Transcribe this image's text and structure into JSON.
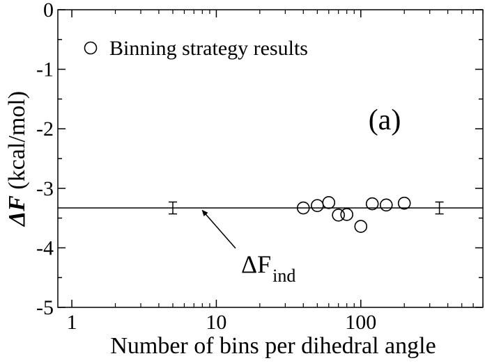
{
  "chart_data": {
    "type": "scatter",
    "xlabel": "Number of bins per dihedral angle",
    "ylabel_symbol": "ΔF",
    "ylabel_unit": " (kcal/mol)",
    "xscale": "log",
    "xlim": [
      0.8,
      700
    ],
    "ylim": [
      -5,
      0
    ],
    "xticks": [
      {
        "value": 1,
        "label": "1"
      },
      {
        "value": 10,
        "label": "10"
      },
      {
        "value": 100,
        "label": "100"
      }
    ],
    "yticks": [
      {
        "value": 0,
        "label": "0"
      },
      {
        "value": -1,
        "label": "-1"
      },
      {
        "value": -2,
        "label": "-2"
      },
      {
        "value": -3,
        "label": "-3"
      },
      {
        "value": -4,
        "label": "-4"
      },
      {
        "value": -5,
        "label": "-5"
      }
    ],
    "series": [
      {
        "name": "Binning strategy results",
        "marker": "open-circle",
        "points": [
          {
            "x": 40,
            "y": -3.33
          },
          {
            "x": 50,
            "y": -3.29
          },
          {
            "x": 60,
            "y": -3.24
          },
          {
            "x": 70,
            "y": -3.45
          },
          {
            "x": 80,
            "y": -3.44
          },
          {
            "x": 100,
            "y": -3.64
          },
          {
            "x": 120,
            "y": -3.26
          },
          {
            "x": 150,
            "y": -3.28
          },
          {
            "x": 200,
            "y": -3.25
          }
        ]
      }
    ],
    "reference_line": {
      "y": -3.33,
      "error_bars": [
        {
          "x": 5,
          "low": -3.43,
          "high": -3.23
        },
        {
          "x": 350,
          "low": -3.43,
          "high": -3.23
        }
      ]
    },
    "annotation": {
      "symbol": "ΔF",
      "subscript": "ind",
      "arrow_target": {
        "x": 8,
        "y": -3.37
      }
    },
    "panel_label": "(a)",
    "legend_placement": "top-left",
    "grid": false
  }
}
